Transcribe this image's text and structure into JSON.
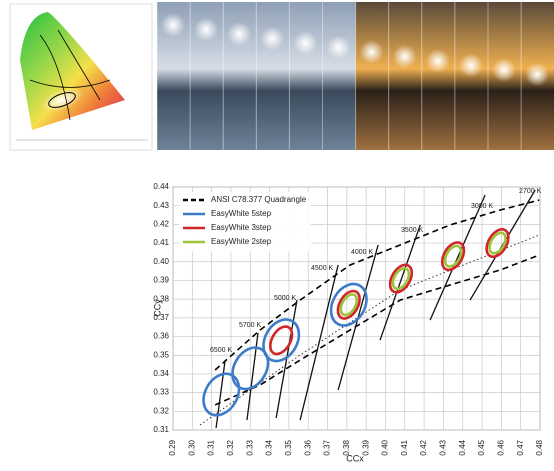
{
  "chart_data": {
    "type": "ellipse",
    "x_label": "CCx",
    "y_label": "CCy",
    "xlim": [
      0.29,
      0.48
    ],
    "ylim": [
      0.31,
      0.44
    ],
    "xticks": [
      0.29,
      {
        "value": 0.3,
        "label": "0.30"
      },
      0.31,
      0.32,
      0.33,
      0.34,
      0.35,
      0.36,
      0.37,
      0.38,
      0.39,
      {
        "value": 0.4,
        "label": "0.40"
      },
      0.41,
      0.42,
      0.43,
      0.44,
      0.45,
      0.46,
      0.47,
      0.48
    ],
    "yticks": [
      0.31,
      0.32,
      0.33,
      0.34,
      0.35,
      0.36,
      0.37,
      0.38,
      0.39,
      {
        "value": 0.4,
        "label": "0.40"
      },
      0.41,
      0.42,
      0.43,
      0.44
    ],
    "grid": true,
    "legend": "upper-left",
    "quadrangle": {
      "name": "ANSI C78.377 Quadrangle",
      "color": "#000000",
      "upper": {
        "x": [
          0.3118,
          0.3351,
          0.3558,
          0.3817,
          0.4076,
          0.4335,
          0.4594,
          0.4796
        ],
        "y": [
          0.3421,
          0.3635,
          0.3795,
          0.3983,
          0.409,
          0.4197,
          0.4277,
          0.433
        ]
      },
      "lower": {
        "x": [
          0.3118,
          0.3351,
          0.3558,
          0.3817,
          0.4076,
          0.4335,
          0.4594,
          0.4796
        ],
        "y": [
          0.3234,
          0.3341,
          0.3474,
          0.3635,
          0.3795,
          0.3876,
          0.3956,
          0.4036
        ]
      }
    },
    "planckian": {
      "x": [
        0.304,
        0.3558,
        0.4076,
        0.4796
      ],
      "y": [
        0.3127,
        0.3501,
        0.3849,
        0.4143
      ]
    },
    "isotherms": [
      {
        "label": "6500 K",
        "x": [
          0.317,
          0.3123
        ],
        "y": [
          0.3475,
          0.3111
        ],
        "label_x": 0.3149,
        "label_y": 0.3528
      },
      {
        "label": "5700 K",
        "x": [
          0.334,
          0.3283
        ],
        "y": [
          0.3619,
          0.3153
        ],
        "label_x": 0.3299,
        "label_y": 0.3662
      },
      {
        "label": "5000 K",
        "x": [
          0.3542,
          0.3434
        ],
        "y": [
          0.3795,
          0.3164
        ],
        "label_x": 0.348,
        "label_y": 0.3806
      },
      {
        "label": "4500 K",
        "x": [
          0.3755,
          0.3558
        ],
        "y": [
          0.3983,
          0.3153
        ],
        "label_x": 0.3672,
        "label_y": 0.3967
      },
      {
        "label": "4000 K",
        "x": [
          0.3962,
          0.3755
        ],
        "y": [
          0.409,
          0.3314
        ],
        "label_x": 0.3879,
        "label_y": 0.4052
      },
      {
        "label": "3500 K",
        "x": [
          0.418,
          0.3972
        ],
        "y": [
          0.4197,
          0.3581
        ],
        "label_x": 0.4138,
        "label_y": 0.417
      },
      {
        "label": "3000 K",
        "x": [
          0.4516,
          0.4231
        ],
        "y": [
          0.4357,
          0.3688
        ],
        "label_x": 0.45,
        "label_y": 0.4298
      },
      {
        "label": "2700 K",
        "x": [
          0.4775,
          0.4438
        ],
        "y": [
          0.4384,
          0.3795
        ],
        "label_x": 0.4749,
        "label_y": 0.4379
      }
    ],
    "series": [
      {
        "name": "EasyWhite 5step",
        "color": "#3d7cc9",
        "x": [
          0.315,
          0.33,
          0.346,
          0.381
        ],
        "y": [
          0.329,
          0.343,
          0.358,
          0.377
        ],
        "rx": 0.0083,
        "ry": 0.0118
      },
      {
        "name": "EasyWhite 3step",
        "color": "#d0262a",
        "x": [
          0.346,
          0.381,
          0.408,
          0.435,
          0.458
        ],
        "y": [
          0.358,
          0.377,
          0.391,
          0.403,
          0.41
        ],
        "rx": 0.0047,
        "ry": 0.008
      },
      {
        "name": "EasyWhite 2step",
        "color": "#9cc33a",
        "x": [
          0.381,
          0.408,
          0.435,
          0.458
        ],
        "y": [
          0.377,
          0.391,
          0.403,
          0.41
        ],
        "rx": 0.0034,
        "ry": 0.006
      }
    ]
  }
}
